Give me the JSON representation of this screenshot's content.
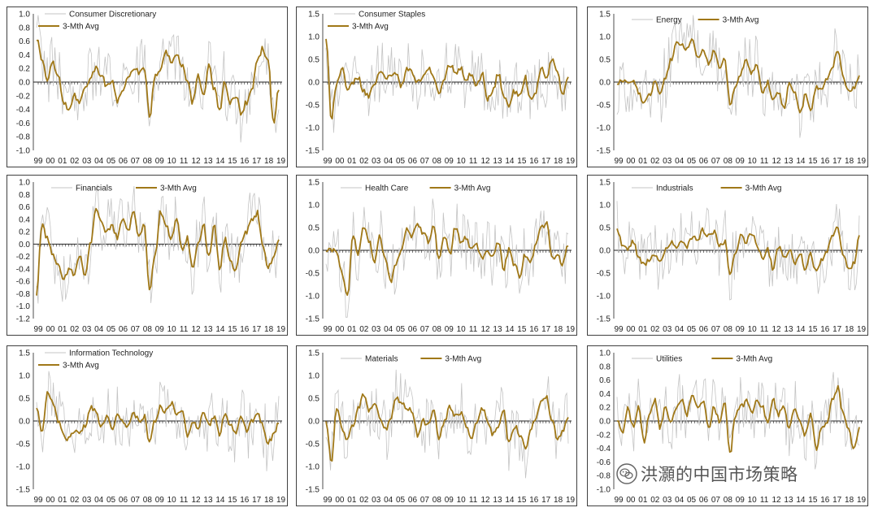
{
  "colors": {
    "avg": "#a07818",
    "raw": "#c4c4c4",
    "axis": "#222222",
    "border": "#404040"
  },
  "watermark": {
    "text": "洪灝的中国市场策略",
    "icon": "wechat-icon"
  },
  "chart_data": [
    {
      "type": "line",
      "legend": [
        "Consumer Discretionary",
        "3-Mth Avg"
      ],
      "legend_layout": "stacked",
      "yticks": [
        "1.0",
        "0.8",
        "0.6",
        "0.4",
        "0.2",
        "0.0",
        "-0.2",
        "-0.4",
        "-0.6",
        "-0.8",
        "-1.0"
      ],
      "ylim": [
        -1.0,
        1.0
      ],
      "xticks": [
        "99",
        "00",
        "01",
        "02",
        "03",
        "04",
        "05",
        "06",
        "07",
        "08",
        "09",
        "10",
        "11",
        "12",
        "13",
        "14",
        "15",
        "16",
        "17",
        "18",
        "19"
      ],
      "series": [
        {
          "name": "3-Mth Avg",
          "values": [
            0.65,
            0.3,
            0.0,
            0.3,
            0.1,
            -0.3,
            -0.4,
            -0.2,
            -0.3,
            -0.1,
            0.05,
            0.2,
            0.1,
            -0.05,
            0.0,
            -0.3,
            -0.1,
            0.1,
            0.2,
            0.15,
            0.2,
            -0.5,
            0.1,
            0.2,
            0.45,
            0.3,
            0.4,
            0.25,
            0.0,
            -0.3,
            0.1,
            -0.2,
            0.25,
            -0.1,
            -0.4,
            0.0,
            -0.3,
            -0.2,
            -0.45,
            -0.3,
            -0.1,
            0.3,
            0.5,
            0.3,
            -0.6,
            -0.1
          ]
        }
      ]
    },
    {
      "type": "line",
      "legend": [
        "Consumer Staples",
        "3-Mth Avg"
      ],
      "legend_layout": "stacked",
      "yticks": [
        "1.5",
        "1.0",
        "0.5",
        "0.0",
        "-0.5",
        "-1.0",
        "-1.5"
      ],
      "ylim": [
        -1.5,
        1.5
      ],
      "xticks": [
        "99",
        "00",
        "01",
        "02",
        "03",
        "04",
        "05",
        "06",
        "07",
        "08",
        "09",
        "10",
        "11",
        "12",
        "13",
        "14",
        "15",
        "16",
        "17",
        "18",
        "19"
      ],
      "series": [
        {
          "name": "3-Mth Avg",
          "values": [
            1.0,
            -0.8,
            0.0,
            0.3,
            -0.2,
            0.0,
            0.1,
            -0.2,
            -0.3,
            0.0,
            0.2,
            0.1,
            0.1,
            0.2,
            -0.1,
            0.3,
            0.2,
            0.0,
            0.1,
            0.3,
            0.1,
            -0.3,
            0.1,
            0.4,
            0.2,
            0.3,
            0.0,
            0.2,
            -0.1,
            0.2,
            -0.4,
            -0.2,
            0.2,
            -0.3,
            -0.5,
            -0.2,
            -0.3,
            0.1,
            -0.4,
            -0.2,
            0.3,
            0.1,
            0.5,
            0.2,
            -0.3,
            0.1
          ]
        }
      ]
    },
    {
      "type": "line",
      "legend": [
        "Energy",
        "3-Mth Avg"
      ],
      "legend_layout": "inline",
      "yticks": [
        "1.5",
        "1.0",
        "0.5",
        "0.0",
        "-0.5",
        "-1.0",
        "-1.5"
      ],
      "ylim": [
        -1.5,
        1.5
      ],
      "xticks": [
        "99",
        "00",
        "01",
        "02",
        "03",
        "04",
        "05",
        "06",
        "07",
        "08",
        "09",
        "10",
        "11",
        "12",
        "13",
        "14",
        "15",
        "16",
        "17",
        "18",
        "19"
      ],
      "series": [
        {
          "name": "3-Mth Avg",
          "values": [
            0.0,
            0.0,
            0.0,
            0.0,
            -0.2,
            -0.5,
            -0.3,
            0.0,
            -0.3,
            0.1,
            0.5,
            0.85,
            0.8,
            0.7,
            0.9,
            0.5,
            0.7,
            0.4,
            0.7,
            0.3,
            0.5,
            -0.5,
            -0.1,
            0.2,
            0.5,
            0.2,
            0.4,
            -0.3,
            0.0,
            -0.4,
            -0.2,
            -0.6,
            0.0,
            -0.2,
            -0.7,
            -0.3,
            -0.6,
            -0.1,
            -0.2,
            0.1,
            0.3,
            0.7,
            0.1,
            -0.2,
            -0.1,
            0.1
          ]
        }
      ]
    },
    {
      "type": "line",
      "legend": [
        "Financials",
        "3-Mth Avg"
      ],
      "legend_layout": "inline",
      "yticks": [
        "1.0",
        "0.8",
        "0.6",
        "0.4",
        "0.2",
        "0.0",
        "-0.2",
        "-0.4",
        "-0.6",
        "-0.8",
        "-1.0",
        "-1.2"
      ],
      "ylim": [
        -1.2,
        1.0
      ],
      "xticks": [
        "99",
        "00",
        "01",
        "02",
        "03",
        "04",
        "05",
        "06",
        "07",
        "08",
        "09",
        "10",
        "11",
        "12",
        "13",
        "14",
        "15",
        "16",
        "17",
        "18",
        "19"
      ],
      "series": [
        {
          "name": "3-Mth Avg",
          "values": [
            -0.8,
            0.3,
            0.1,
            -0.2,
            -0.3,
            -0.6,
            -0.4,
            -0.5,
            -0.2,
            -0.5,
            0.0,
            0.6,
            0.4,
            0.2,
            0.3,
            0.1,
            0.4,
            0.2,
            0.5,
            0.1,
            0.3,
            -0.7,
            -0.2,
            0.5,
            0.3,
            0.1,
            0.4,
            -0.1,
            0.1,
            -0.4,
            0.0,
            0.3,
            -0.2,
            0.3,
            -0.4,
            0.1,
            -0.3,
            -0.4,
            0.0,
            0.2,
            0.4,
            0.5,
            0.0,
            -0.4,
            -0.2,
            0.1
          ]
        }
      ]
    },
    {
      "type": "line",
      "legend": [
        "Health Care",
        "3-Mth Avg"
      ],
      "legend_layout": "inline",
      "yticks": [
        "1.5",
        "1.0",
        "0.5",
        "0.0",
        "-0.5",
        "-1.0",
        "-1.5"
      ],
      "ylim": [
        -1.5,
        1.5
      ],
      "xticks": [
        "99",
        "00",
        "01",
        "02",
        "03",
        "04",
        "05",
        "06",
        "07",
        "08",
        "09",
        "10",
        "11",
        "12",
        "13",
        "14",
        "15",
        "16",
        "17",
        "18",
        "19"
      ],
      "series": [
        {
          "name": "3-Mth Avg",
          "values": [
            0.0,
            0.0,
            0.0,
            -0.5,
            -1.0,
            0.3,
            -0.1,
            0.5,
            0.2,
            -0.3,
            0.3,
            -0.2,
            -0.7,
            -0.3,
            0.0,
            0.5,
            0.3,
            0.6,
            0.4,
            0.2,
            0.5,
            -0.2,
            0.3,
            -0.1,
            0.5,
            0.2,
            0.3,
            0.0,
            0.1,
            -0.2,
            0.0,
            -0.1,
            0.2,
            -0.4,
            0.0,
            -0.3,
            -0.6,
            -0.1,
            -0.3,
            0.2,
            0.5,
            0.6,
            -0.2,
            -0.1,
            -0.3,
            0.1
          ]
        }
      ]
    },
    {
      "type": "line",
      "legend": [
        "Industrials",
        "3-Mth Avg"
      ],
      "legend_layout": "inline",
      "yticks": [
        "1.5",
        "1.0",
        "0.5",
        "0.0",
        "-0.5",
        "-1.0",
        "-1.5"
      ],
      "ylim": [
        -1.5,
        1.5
      ],
      "xticks": [
        "99",
        "00",
        "01",
        "02",
        "03",
        "04",
        "05",
        "06",
        "07",
        "08",
        "09",
        "10",
        "11",
        "12",
        "13",
        "14",
        "15",
        "16",
        "17",
        "18",
        "19"
      ],
      "series": [
        {
          "name": "3-Mth Avg",
          "values": [
            0.5,
            0.1,
            0.0,
            0.2,
            -0.2,
            -0.3,
            -0.2,
            -0.1,
            -0.3,
            0.0,
            0.2,
            0.1,
            0.2,
            0.1,
            0.3,
            0.2,
            0.45,
            0.3,
            0.4,
            0.1,
            0.2,
            -0.5,
            -0.1,
            0.3,
            0.2,
            0.4,
            0.1,
            -0.2,
            0.0,
            -0.4,
            0.1,
            -0.2,
            0.0,
            -0.3,
            -0.1,
            -0.4,
            -0.1,
            -0.5,
            -0.2,
            0.0,
            0.3,
            0.5,
            -0.1,
            -0.4,
            -0.3,
            0.3
          ]
        }
      ]
    },
    {
      "type": "line",
      "legend": [
        "Information Technology",
        "3-Mth Avg"
      ],
      "legend_layout": "stacked",
      "yticks": [
        "1.5",
        "1.0",
        "0.5",
        "0.0",
        "-0.5",
        "-1.0",
        "-1.5"
      ],
      "ylim": [
        -1.5,
        1.5
      ],
      "xticks": [
        "99",
        "00",
        "01",
        "02",
        "03",
        "04",
        "05",
        "06",
        "07",
        "08",
        "09",
        "10",
        "11",
        "12",
        "13",
        "14",
        "15",
        "16",
        "17",
        "18",
        "19"
      ],
      "series": [
        {
          "name": "3-Mth Avg",
          "values": [
            0.3,
            -0.3,
            0.6,
            0.4,
            0.0,
            -0.3,
            -0.4,
            -0.2,
            -0.3,
            -0.1,
            0.3,
            0.2,
            -0.1,
            0.1,
            -0.2,
            0.1,
            0.0,
            -0.1,
            0.2,
            0.0,
            0.1,
            -0.5,
            0.0,
            0.3,
            0.2,
            0.4,
            0.1,
            0.2,
            -0.3,
            0.0,
            -0.2,
            0.2,
            -0.1,
            0.1,
            -0.3,
            0.2,
            -0.1,
            -0.3,
            0.1,
            -0.2,
            0.0,
            0.2,
            -0.1,
            -0.5,
            -0.3,
            0.0
          ]
        }
      ]
    },
    {
      "type": "line",
      "legend": [
        "Materials",
        "3-Mth Avg"
      ],
      "legend_layout": "inline",
      "yticks": [
        "1.5",
        "1.0",
        "0.5",
        "0.0",
        "-0.5",
        "-1.0",
        "-1.5"
      ],
      "ylim": [
        -1.5,
        1.5
      ],
      "xticks": [
        "99",
        "00",
        "01",
        "02",
        "03",
        "04",
        "05",
        "06",
        "07",
        "08",
        "09",
        "10",
        "11",
        "12",
        "13",
        "14",
        "15",
        "16",
        "17",
        "18",
        "19"
      ],
      "series": [
        {
          "name": "3-Mth Avg",
          "values": [
            0.0,
            -0.9,
            0.3,
            -0.2,
            -0.4,
            -0.1,
            0.3,
            0.6,
            0.2,
            0.4,
            0.1,
            -0.2,
            0.0,
            0.5,
            0.4,
            0.3,
            0.2,
            -0.3,
            0.0,
            -0.1,
            0.3,
            -0.4,
            0.0,
            0.3,
            0.1,
            0.2,
            -0.1,
            -0.4,
            0.0,
            0.3,
            0.0,
            -0.3,
            -0.1,
            0.2,
            -0.5,
            -0.1,
            -0.3,
            -0.6,
            -0.2,
            0.1,
            0.4,
            0.5,
            0.0,
            -0.4,
            -0.2,
            0.1
          ]
        }
      ]
    },
    {
      "type": "line",
      "legend": [
        "Utilities",
        "3-Mth Avg"
      ],
      "legend_layout": "inline",
      "yticks": [
        "1.0",
        "0.8",
        "0.6",
        "0.4",
        "0.2",
        "0.0",
        "-0.2",
        "-0.4",
        "-0.6",
        "-0.8",
        "-1.0"
      ],
      "ylim": [
        -1.0,
        1.0
      ],
      "xticks": [
        "99",
        "00",
        "01",
        "02",
        "03",
        "04",
        "05",
        "06",
        "07",
        "08",
        "09",
        "10",
        "11",
        "12",
        "13",
        "14",
        "15",
        "16",
        "17",
        "18",
        "19"
      ],
      "series": [
        {
          "name": "3-Mth Avg",
          "values": [
            0.0,
            -0.2,
            0.2,
            -0.1,
            0.2,
            -0.3,
            0.1,
            0.3,
            -0.1,
            0.2,
            0.0,
            0.2,
            0.3,
            0.1,
            0.4,
            0.2,
            0.3,
            -0.1,
            0.2,
            0.0,
            0.3,
            -0.5,
            0.1,
            0.2,
            0.3,
            0.1,
            0.3,
            0.2,
            0.0,
            0.3,
            0.1,
            0.2,
            -0.1,
            0.2,
            0.0,
            -0.2,
            0.1,
            -0.4,
            -0.1,
            0.0,
            0.3,
            0.5,
            0.1,
            -0.1,
            -0.4,
            -0.1
          ]
        }
      ]
    }
  ]
}
